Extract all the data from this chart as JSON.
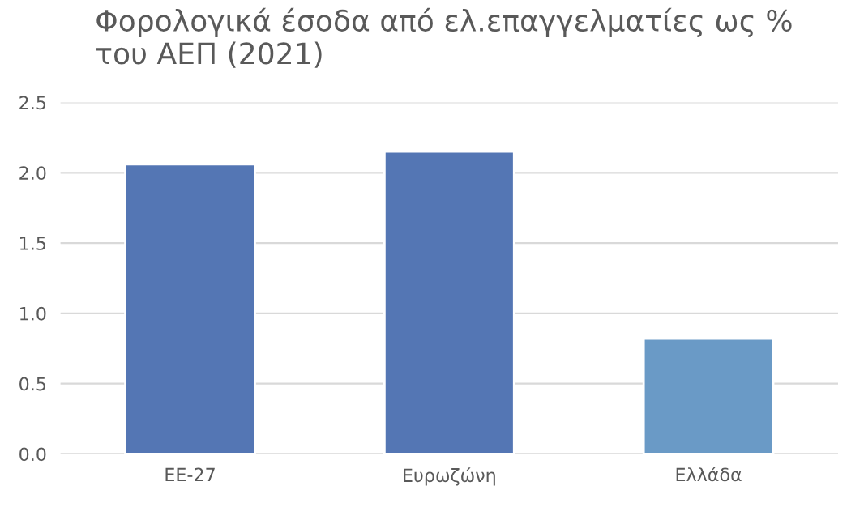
{
  "chart_data": {
    "type": "bar",
    "title": "Φορολογικά έσοδα από ελ.επαγγελματίες ως %\nτου ΑΕΠ (2021)",
    "categories": [
      "ΕΕ-27",
      "Ευρωζώνη",
      "Ελλάδα"
    ],
    "values": [
      2.06,
      2.15,
      0.82
    ],
    "colors": [
      "#4472c4",
      "#4472c4",
      "#5b9bd5"
    ],
    "ylim": [
      0,
      2.5
    ],
    "yticks": [
      {
        "value": 0,
        "label": "0.0"
      },
      {
        "value": 0.5,
        "label": "0.5"
      },
      {
        "value": 1,
        "label": "1.0"
      },
      {
        "value": 1.5,
        "label": "1.5"
      },
      {
        "value": 2,
        "label": "2.0"
      },
      {
        "value": 2.5,
        "label": "2.5"
      }
    ],
    "grid": "y",
    "legend": false
  }
}
